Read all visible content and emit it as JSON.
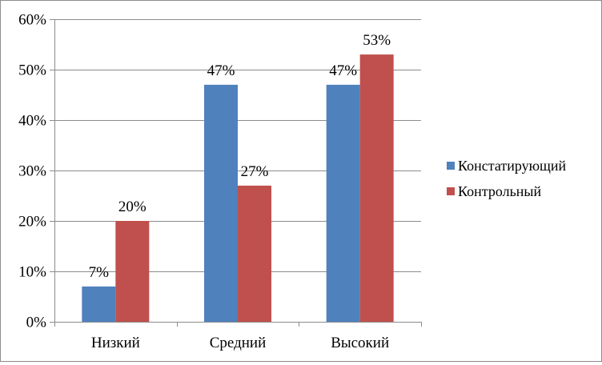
{
  "chart_data": {
    "type": "bar",
    "categories": [
      "Низкий",
      "Средний",
      "Высокий"
    ],
    "series": [
      {
        "name": "Констатирующий",
        "values": [
          7,
          47,
          47
        ],
        "labels": [
          "7%",
          "47%",
          "47%"
        ],
        "color": "#4F81BD"
      },
      {
        "name": "Контрольный",
        "values": [
          20,
          27,
          53
        ],
        "labels": [
          "20%",
          "27%",
          "53%"
        ],
        "color": "#C0504D"
      }
    ],
    "ylim": [
      0,
      60
    ],
    "yticks": [
      0,
      10,
      20,
      30,
      40,
      50,
      60
    ],
    "ytick_labels": [
      "0%",
      "10%",
      "20%",
      "30%",
      "40%",
      "50%",
      "60%"
    ],
    "grid": true,
    "legend_position": "right"
  }
}
